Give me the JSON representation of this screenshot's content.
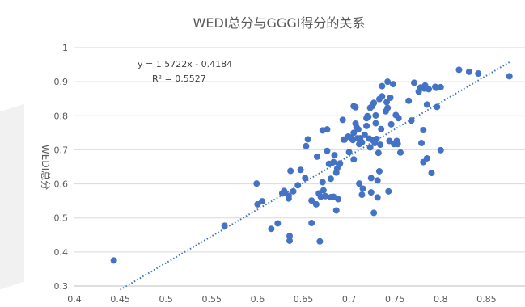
{
  "chart_data": {
    "type": "scatter",
    "title": "WEDI总分与GGGI得分的关系",
    "xlabel": "",
    "ylabel": "WEDI总分",
    "xlim": [
      0.4,
      0.9
    ],
    "ylim": [
      0.3,
      1.0
    ],
    "xticks": [
      "0.4",
      "0.45",
      "0.5",
      "0.55",
      "0.6",
      "0.65",
      "0.7",
      "0.75",
      "0.8",
      "0.85"
    ],
    "yticks": [
      "0.3",
      "0.4",
      "0.5",
      "0.6",
      "0.7",
      "0.8",
      "0.9",
      "1"
    ],
    "grid": "horizontal",
    "point_color": "#4472C4",
    "trendline": {
      "equation": "y = 1.5722x - 0.4184",
      "r2": "R² = 0.5527",
      "slope": 1.5722,
      "intercept": -0.4184,
      "x_range": [
        0.45,
        0.875
      ],
      "style": "dotted",
      "color": "#4472C4"
    },
    "points": [
      [
        0.443,
        0.375
      ],
      [
        0.564,
        0.477
      ],
      [
        0.599,
        0.601
      ],
      [
        0.6,
        0.54
      ],
      [
        0.605,
        0.549
      ],
      [
        0.615,
        0.468
      ],
      [
        0.622,
        0.484
      ],
      [
        0.627,
        0.572
      ],
      [
        0.629,
        0.579
      ],
      [
        0.63,
        0.573
      ],
      [
        0.634,
        0.565
      ],
      [
        0.634,
        0.557
      ],
      [
        0.635,
        0.447
      ],
      [
        0.635,
        0.433
      ],
      [
        0.636,
        0.638
      ],
      [
        0.639,
        0.578
      ],
      [
        0.644,
        0.596
      ],
      [
        0.647,
        0.641
      ],
      [
        0.652,
        0.617
      ],
      [
        0.653,
        0.711
      ],
      [
        0.655,
        0.731
      ],
      [
        0.659,
        0.485
      ],
      [
        0.659,
        0.551
      ],
      [
        0.664,
        0.54
      ],
      [
        0.665,
        0.68
      ],
      [
        0.667,
        0.572
      ],
      [
        0.668,
        0.431
      ],
      [
        0.669,
        0.562
      ],
      [
        0.671,
        0.605
      ],
      [
        0.671,
        0.757
      ],
      [
        0.672,
        0.581
      ],
      [
        0.674,
        0.564
      ],
      [
        0.676,
        0.697
      ],
      [
        0.676,
        0.76
      ],
      [
        0.678,
        0.659
      ],
      [
        0.68,
        0.615
      ],
      [
        0.68,
        0.561
      ],
      [
        0.683,
        0.562
      ],
      [
        0.683,
        0.664
      ],
      [
        0.684,
        0.684
      ],
      [
        0.686,
        0.522
      ],
      [
        0.686,
        0.633
      ],
      [
        0.687,
        0.645
      ],
      [
        0.688,
        0.555
      ],
      [
        0.689,
        0.656
      ],
      [
        0.69,
        0.66
      ],
      [
        0.693,
        0.788
      ],
      [
        0.694,
        0.73
      ],
      [
        0.695,
        0.73
      ],
      [
        0.699,
        0.739
      ],
      [
        0.7,
        0.693
      ],
      [
        0.702,
        0.736
      ],
      [
        0.704,
        0.729
      ],
      [
        0.705,
        0.75
      ],
      [
        0.705,
        0.672
      ],
      [
        0.705,
        0.828
      ],
      [
        0.707,
        0.825
      ],
      [
        0.707,
        0.777
      ],
      [
        0.708,
        0.767
      ],
      [
        0.709,
        0.734
      ],
      [
        0.71,
        0.76
      ],
      [
        0.711,
        0.717
      ],
      [
        0.711,
        0.601
      ],
      [
        0.712,
        0.734
      ],
      [
        0.714,
        0.722
      ],
      [
        0.714,
        0.568
      ],
      [
        0.715,
        0.586
      ],
      [
        0.717,
        0.744
      ],
      [
        0.719,
        0.77
      ],
      [
        0.719,
        0.793
      ],
      [
        0.72,
        0.799
      ],
      [
        0.721,
        0.797
      ],
      [
        0.722,
        0.733
      ],
      [
        0.723,
        0.707
      ],
      [
        0.723,
        0.823
      ],
      [
        0.724,
        0.617
      ],
      [
        0.724,
        0.575
      ],
      [
        0.725,
        0.828
      ],
      [
        0.726,
        0.728
      ],
      [
        0.726,
        0.834
      ],
      [
        0.727,
        0.838
      ],
      [
        0.727,
        0.515
      ],
      [
        0.728,
        0.72
      ],
      [
        0.729,
        0.801
      ],
      [
        0.729,
        0.778
      ],
      [
        0.73,
        0.732
      ],
      [
        0.731,
        0.56
      ],
      [
        0.731,
        0.61
      ],
      [
        0.732,
        0.691
      ],
      [
        0.733,
        0.849
      ],
      [
        0.733,
        0.637
      ],
      [
        0.734,
        0.715
      ],
      [
        0.735,
        0.761
      ],
      [
        0.736,
        0.857
      ],
      [
        0.736,
        0.887
      ],
      [
        0.74,
        0.813
      ],
      [
        0.741,
        0.84
      ],
      [
        0.742,
        0.9
      ],
      [
        0.742,
        0.823
      ],
      [
        0.743,
        0.578
      ],
      [
        0.744,
        0.726
      ],
      [
        0.745,
        0.853
      ],
      [
        0.746,
        0.775
      ],
      [
        0.748,
        0.893
      ],
      [
        0.749,
        0.717
      ],
      [
        0.751,
        0.802
      ],
      [
        0.752,
        0.726
      ],
      [
        0.753,
        0.717
      ],
      [
        0.753,
        0.718
      ],
      [
        0.754,
        0.793
      ],
      [
        0.756,
        0.692
      ],
      [
        0.765,
        0.844
      ],
      [
        0.768,
        0.786
      ],
      [
        0.771,
        0.897
      ],
      [
        0.776,
        0.871
      ],
      [
        0.778,
        0.883
      ],
      [
        0.779,
        0.72
      ],
      [
        0.781,
        0.758
      ],
      [
        0.781,
        0.664
      ],
      [
        0.782,
        0.88
      ],
      [
        0.783,
        0.889
      ],
      [
        0.785,
        0.833
      ],
      [
        0.785,
        0.675
      ],
      [
        0.787,
        0.878
      ],
      [
        0.79,
        0.632
      ],
      [
        0.794,
        0.885
      ],
      [
        0.795,
        0.882
      ],
      [
        0.796,
        0.826
      ],
      [
        0.8,
        0.699
      ],
      [
        0.8,
        0.884
      ],
      [
        0.82,
        0.935
      ],
      [
        0.831,
        0.929
      ],
      [
        0.841,
        0.924
      ],
      [
        0.875,
        0.916
      ]
    ]
  }
}
